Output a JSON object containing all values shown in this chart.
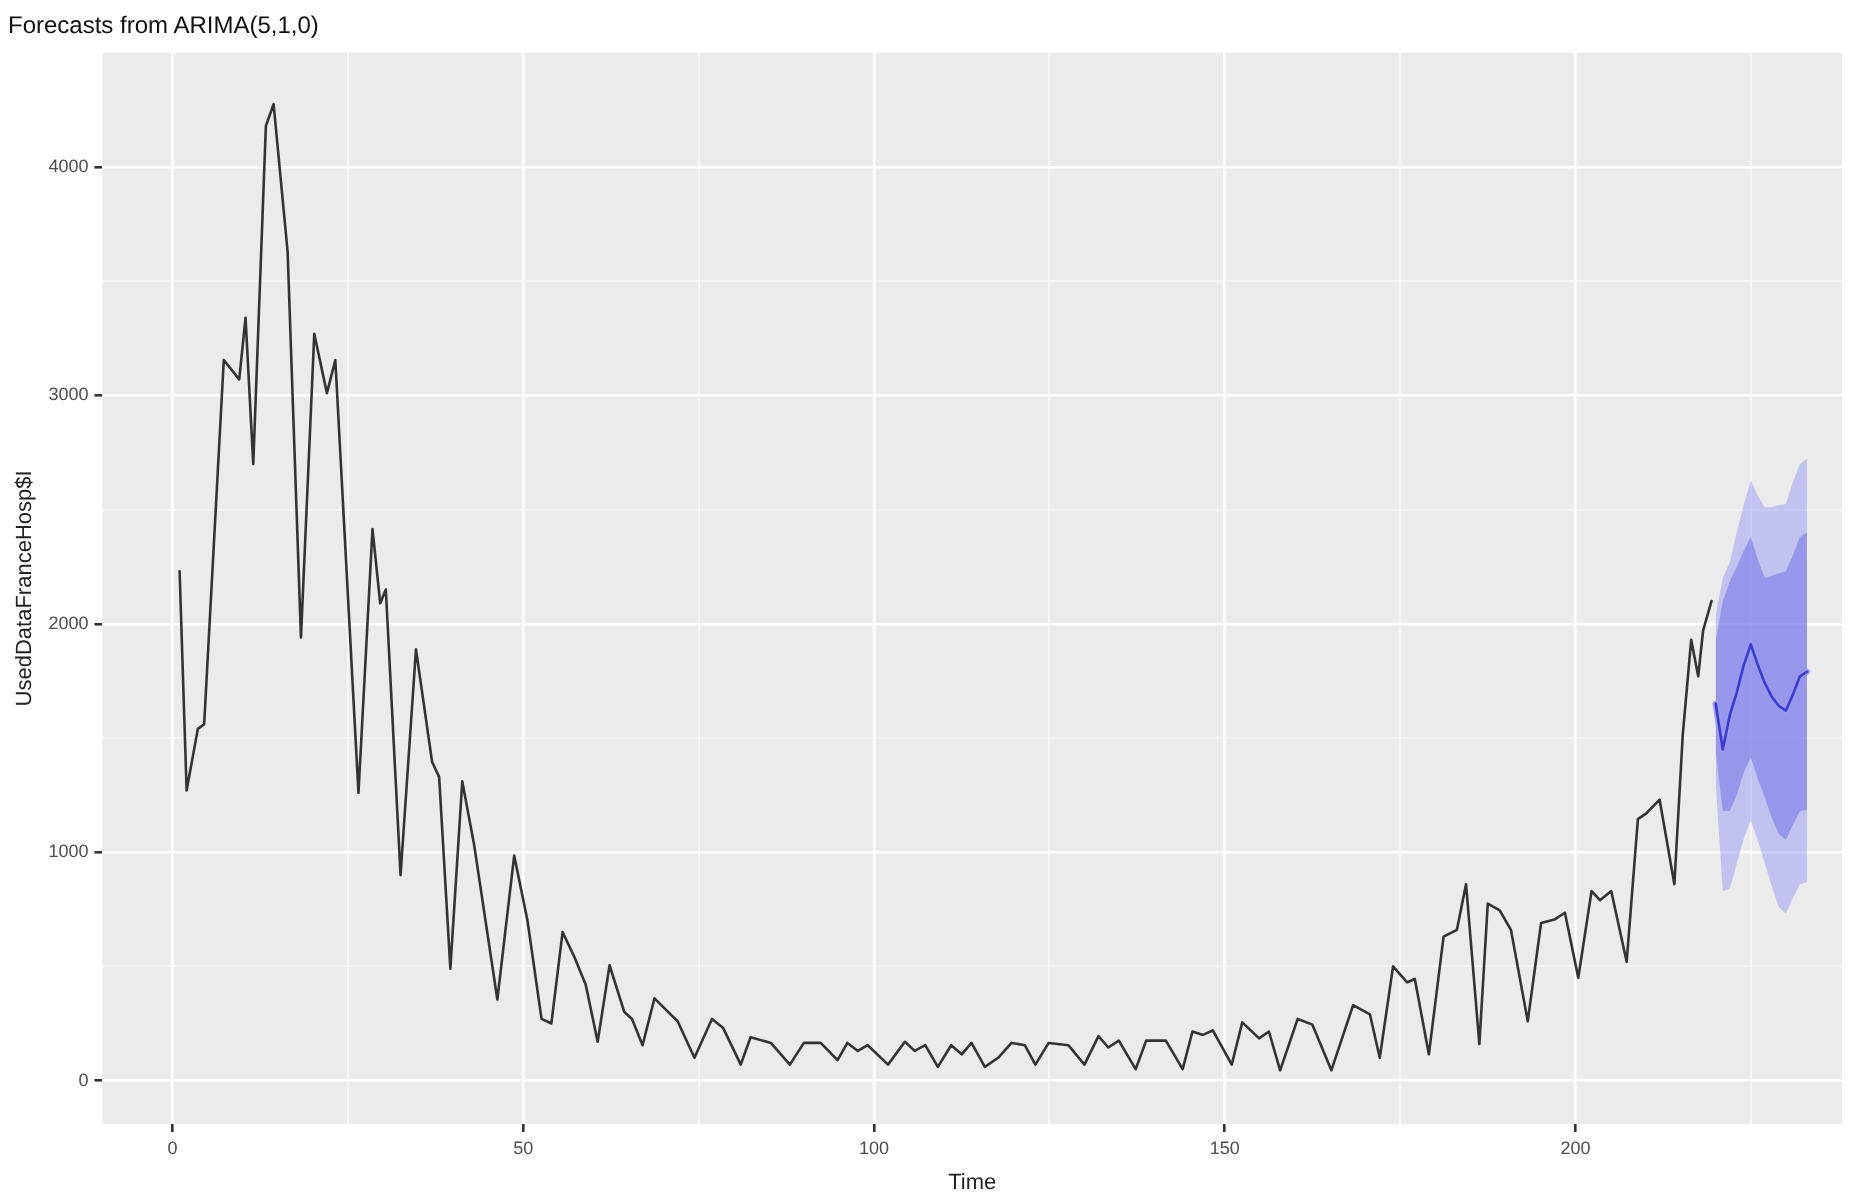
{
  "chart_data": {
    "type": "line",
    "title": "Forecasts from ARIMA(5,1,0)",
    "xlabel": "Time",
    "ylabel": "UsedDataFranceHosp$I",
    "xlim": [
      -10,
      238
    ],
    "ylim": [
      -190,
      4500
    ],
    "xticks": [
      0,
      {
        "value": 25,
        "label": null
      },
      50,
      {
        "value": 75,
        "label": null
      },
      100,
      {
        "value": 125,
        "label": null
      },
      150,
      {
        "value": 175,
        "label": null
      },
      200,
      {
        "value": 225,
        "label": null
      }
    ],
    "yticks": [
      0,
      {
        "value": 500,
        "label": null
      },
      1000,
      {
        "value": 1500,
        "label": null
      },
      2000,
      {
        "value": 2500,
        "label": null
      },
      3000,
      {
        "value": 3500,
        "label": null
      },
      4000
    ],
    "grid": true,
    "legend": false,
    "marker": "none",
    "line_style": "solid",
    "series": [
      {
        "color": "#333333",
        "x": [
          1,
          2,
          3.6,
          4.5,
          7.3,
          9.5,
          10.4,
          11.5,
          13.3,
          14.4,
          16.4,
          18.3,
          20.2,
          22,
          23.2,
          26.5,
          28.5,
          29.6,
          30.4,
          32.5,
          34.7,
          37,
          38,
          39.6,
          41.3,
          43,
          46.3,
          48.7,
          50.6,
          52.6,
          54,
          55.6,
          57.3,
          58.9,
          60.6,
          62.3,
          64.4,
          65.5,
          67,
          68.7,
          71,
          72,
          74.4,
          76.9,
          78.5,
          81,
          82.4,
          85.3,
          88,
          90,
          92.4,
          94.8,
          96.2,
          97.7,
          99.1,
          102,
          104.4,
          105.8,
          107.3,
          109.1,
          111,
          112.5,
          113.9,
          115.8,
          117.7,
          119.6,
          121.5,
          123,
          124.9,
          127.7,
          130,
          132,
          133.4,
          134.9,
          137.3,
          138.8,
          141.6,
          144,
          145.4,
          146.9,
          148.3,
          151,
          152.5,
          154.9,
          156.3,
          157.9,
          160.4,
          162.5,
          165.2,
          168.3,
          170.7,
          172.1,
          174,
          176,
          177.1,
          179.1,
          181.2,
          183.1,
          184.4,
          186.3,
          187.5,
          189.2,
          190.8,
          193.2,
          195.1,
          197,
          198.5,
          200.4,
          202.3,
          203.5,
          205.1,
          207.3,
          208.9,
          210.1,
          212,
          214.1,
          215.3,
          216.5,
          217.5,
          218.2,
          219.4
        ],
        "values": [
          2230,
          1270,
          1540,
          1560,
          3155,
          3070,
          3340,
          2700,
          4180,
          4275,
          3630,
          1940,
          3270,
          3010,
          3155,
          1260,
          2415,
          2090,
          2150,
          900,
          1888,
          1395,
          1330,
          490,
          1310,
          1030,
          355,
          985,
          700,
          270,
          250,
          650,
          540,
          420,
          170,
          505,
          300,
          270,
          155,
          360,
          290,
          260,
          100,
          270,
          230,
          70,
          190,
          165,
          70,
          165,
          165,
          90,
          165,
          130,
          155,
          70,
          170,
          130,
          155,
          60,
          155,
          115,
          165,
          60,
          100,
          165,
          155,
          70,
          165,
          155,
          70,
          195,
          145,
          175,
          50,
          175,
          175,
          50,
          215,
          200,
          220,
          70,
          255,
          185,
          215,
          45,
          270,
          245,
          45,
          330,
          290,
          100,
          500,
          430,
          445,
          115,
          630,
          660,
          860,
          160,
          775,
          745,
          660,
          260,
          690,
          705,
          735,
          450,
          830,
          790,
          830,
          520,
          1145,
          1170,
          1230,
          860,
          1515,
          1930,
          1770,
          1970,
          2100
        ]
      },
      {
        "color": "#9a9af5",
        "x": [
          220,
          221,
          222,
          223,
          224,
          225,
          226,
          227,
          228,
          229,
          230,
          231,
          232,
          233
        ],
        "values": [
          1650,
          1450,
          1600,
          1700,
          1820,
          1910,
          1820,
          1740,
          1680,
          1640,
          1620,
          1690,
          1770,
          1790
        ],
        "lower": [
          1300,
          830,
          840,
          950,
          1060,
          1140,
          1050,
          950,
          850,
          760,
          730,
          800,
          860,
          870
        ],
        "upper": [
          2040,
          2200,
          2270,
          2400,
          2520,
          2630,
          2560,
          2510,
          2510,
          2520,
          2525,
          2620,
          2700,
          2725
        ]
      },
      {
        "color": "#3a3ad8",
        "x": [
          220,
          221,
          222,
          223,
          224,
          225,
          226,
          227,
          228,
          229,
          230,
          231,
          232,
          233
        ],
        "values": [
          1650,
          1450,
          1600,
          1700,
          1820,
          1910,
          1820,
          1740,
          1680,
          1640,
          1620,
          1690,
          1770,
          1790
        ],
        "lower": [
          1440,
          1180,
          1180,
          1250,
          1350,
          1415,
          1320,
          1240,
          1150,
          1080,
          1055,
          1120,
          1180,
          1185
        ],
        "upper": [
          1925,
          2100,
          2185,
          2250,
          2320,
          2380,
          2280,
          2200,
          2210,
          2220,
          2230,
          2300,
          2380,
          2400
        ]
      }
    ]
  }
}
